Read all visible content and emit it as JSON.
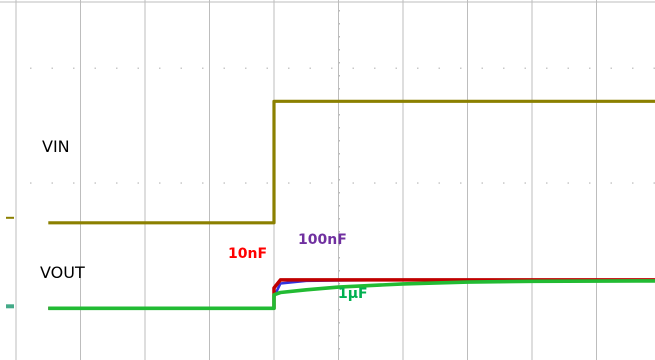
{
  "chart_data": {
    "type": "line",
    "title": "",
    "xlabel": "",
    "ylabel": "",
    "grid": true,
    "x_divisions": 10,
    "y_divisions": 8,
    "x": [
      -3.5,
      0,
      0.1,
      0.5,
      1,
      2,
      3,
      4,
      6.5
    ],
    "series_labels": {
      "vin": "VIN",
      "vout": "VOUT"
    },
    "series": [
      {
        "id": "vin",
        "color": "#8B8000",
        "values": [
          -0.95,
          1.75,
          1.75,
          1.75,
          1.75,
          1.75,
          1.75,
          1.75,
          1.75
        ]
      },
      {
        "id": "vout_10nF",
        "color": "#C00000",
        "values": [
          -2.85,
          -2.4,
          -2.22,
          -2.22,
          -2.22,
          -2.22,
          -2.22,
          -2.22,
          -2.22
        ]
      },
      {
        "id": "vout_100nF",
        "color": "#3333DD",
        "values": [
          -2.85,
          -2.6,
          -2.3,
          -2.24,
          -2.23,
          -2.22,
          -2.22,
          -2.22,
          -2.22
        ]
      },
      {
        "id": "vout_1uF",
        "color": "#22BB33",
        "values": [
          -2.85,
          -2.55,
          -2.5,
          -2.44,
          -2.38,
          -2.31,
          -2.27,
          -2.25,
          -2.24
        ]
      }
    ],
    "annotations": [
      {
        "text": "10nF",
        "color": "#FF0000",
        "series": "vout_10nF"
      },
      {
        "text": "100nF",
        "color": "#7030A0",
        "series": "vout_100nF"
      },
      {
        "text": "1μF",
        "color": "#00B050",
        "series": "vout_1uF"
      }
    ]
  }
}
